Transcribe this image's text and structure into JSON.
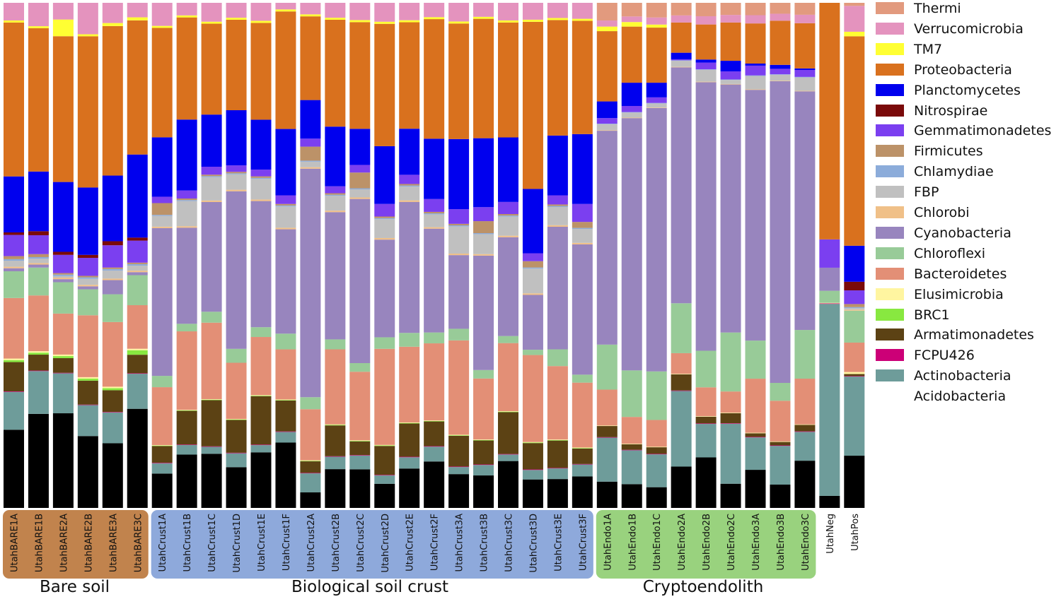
{
  "chart_data": {
    "type": "stacked-bar",
    "orientation": "vertical",
    "ylim": [
      0,
      100
    ],
    "value_unit": "relative abundance (%)",
    "stack_order_bottom_to_top": [
      "Acidobacteria",
      "Actinobacteria",
      "FCPU426",
      "Armatimonadetes",
      "BRC1",
      "Elusimicrobia",
      "Bacteroidetes",
      "Chloroflexi",
      "Cyanobacteria",
      "Chlorobi",
      "FBP",
      "Chlamydiae",
      "Firmicutes",
      "Gemmatimonadetes",
      "Nitrospirae",
      "Planctomycetes",
      "Proteobacteria",
      "TM7",
      "Verrucomicrobia",
      "Thermi"
    ],
    "colors": {
      "Thermi": "#E29A7E",
      "Verrucomicrobia": "#E493BE",
      "TM7": "#FFFF33",
      "Proteobacteria": "#D9711E",
      "Planctomycetes": "#0000EE",
      "Nitrospirae": "#7A0A0A",
      "Gemmatimonadetes": "#7B3FF0",
      "Firmicutes": "#BC9268",
      "Chlamydiae": "#8CACDA",
      "FBP": "#C0C0C0",
      "Chlorobi": "#F0C088",
      "Cyanobacteria": "#9885BE",
      "Chloroflexi": "#98CB98",
      "Bacteroidetes": "#E38F76",
      "Elusimicrobia": "#FFF5A0",
      "BRC1": "#88E840",
      "Armatimonadetes": "#5C4214",
      "FCPU426": "#CC0077",
      "Actinobacteria": "#6E9C9A"
    },
    "categories": [
      "UtahBARE1A",
      "UtahBARE1B",
      "UtahBARE2A",
      "UtahBARE2B",
      "UtahBARE3A",
      "UtahBARE3C",
      "UtahCrust1A",
      "UtahCrust1B",
      "UtahCrust1C",
      "UtahCrust1D",
      "UtahCrust1E",
      "UtahCrust1F",
      "UtahCrust2A",
      "UtahCrust2B",
      "UtahCrust2C",
      "UtahCrust2D",
      "UtahCrust2E",
      "UtahCrust2F",
      "UtahCrust3A",
      "UtahCrust3B",
      "UtahCrust3C",
      "UtahCrust3D",
      "UtahCrust3E",
      "UtahCrust3F",
      "UtahEndo1A",
      "UtahEndo1B",
      "UtahEndo1C",
      "UtahEndo2A",
      "UtahEndo2B",
      "UtahEndo2C",
      "UtahEndo3A",
      "UtahEndo3B",
      "UtahEndo3C",
      "UtahNeg",
      "UtahPos"
    ],
    "series": [
      {
        "name": "Acidobacteria",
        "values": [
          15.5,
          18.9,
          18.7,
          14.4,
          12.8,
          19.8,
          7.0,
          10.6,
          10.9,
          8.2,
          10.8,
          12.9,
          3.1,
          7.8,
          7.6,
          4.6,
          7.7,
          9.4,
          6.7,
          6.5,
          9.3,
          5.4,
          5.7,
          6.3,
          5.2,
          4.7,
          4.1,
          8.2,
          9.8,
          4.8,
          7.4,
          4.7,
          9.5,
          2.3,
          10.3
        ]
      },
      {
        "name": "Actinobacteria",
        "values": [
          7.5,
          8.6,
          7.9,
          6.2,
          6.1,
          7.0,
          2.1,
          1.9,
          1.4,
          2.8,
          1.4,
          2.1,
          3.8,
          2.5,
          2.7,
          1.6,
          2.2,
          3.0,
          1.4,
          2.1,
          1.3,
          1.8,
          2.1,
          2.4,
          8.7,
          6.7,
          6.5,
          15.0,
          6.5,
          11.9,
          6.3,
          7.8,
          5.8,
          36.6,
          15.6
        ]
      },
      {
        "name": "FCPU426",
        "values": [
          0.1,
          0.1,
          0.1,
          0.1,
          0.1,
          0.1,
          0.1,
          0.1,
          0.1,
          0.1,
          0.1,
          0.1,
          0.1,
          0.1,
          0.1,
          0.1,
          0.1,
          0.1,
          0.1,
          0.1,
          0.1,
          0.1,
          0.1,
          0.1,
          0.1,
          0.1,
          0.1,
          0.1,
          0.1,
          0.1,
          0.1,
          0.1,
          0.1,
          0.1,
          0.1
        ]
      },
      {
        "name": "Armatimonadetes",
        "values": [
          5.8,
          3.2,
          2.9,
          4.8,
          4.3,
          3.7,
          3.4,
          6.7,
          9.3,
          6.6,
          9.4,
          6.1,
          2.3,
          6.2,
          2.7,
          5.5,
          6.5,
          5.0,
          6.1,
          4.8,
          8.3,
          5.0,
          5.4,
          3.1,
          2.2,
          1.1,
          1.3,
          3.2,
          1.3,
          2.0,
          0.7,
          0.7,
          1.3,
          0,
          0.4
        ]
      },
      {
        "name": "BRC1",
        "values": [
          0.4,
          0.4,
          0.4,
          0.4,
          0.4,
          0.9,
          0.1,
          0.1,
          0.1,
          0.1,
          0.1,
          0.1,
          0.1,
          0.1,
          0.1,
          0.1,
          0.1,
          0.1,
          0.1,
          0.1,
          0.1,
          0.1,
          0.1,
          0.1,
          0,
          0,
          0,
          0,
          0,
          0,
          0,
          0,
          0,
          0,
          0
        ]
      },
      {
        "name": "Elusimicrobia",
        "values": [
          0.3,
          0.3,
          0.3,
          0.3,
          0.3,
          0.3,
          0.1,
          0.1,
          0.1,
          0.1,
          0.1,
          0.1,
          0.1,
          0.1,
          0.1,
          0.1,
          0.1,
          0.1,
          0.1,
          0.1,
          0.1,
          0.1,
          0.1,
          0.1,
          0.1,
          0.1,
          0.1,
          0.1,
          0.1,
          0.1,
          0.1,
          0.1,
          0.1,
          0.1,
          0.4
        ]
      },
      {
        "name": "Bacteroidetes",
        "values": [
          12.0,
          11.2,
          8.1,
          12.4,
          12.8,
          8.7,
          11.8,
          15.6,
          15.4,
          11.3,
          11.3,
          9.9,
          10.2,
          15.1,
          13.5,
          18.3,
          14.8,
          15.6,
          18.7,
          12.2,
          13.5,
          16.5,
          14.5,
          13.0,
          7.1,
          5.3,
          5.3,
          4.1,
          5.6,
          4.2,
          10.5,
          8.2,
          9.2,
          0,
          5.8
        ]
      },
      {
        "name": "Chloroflexi",
        "values": [
          5.3,
          5.6,
          6.2,
          5.2,
          5.5,
          6.0,
          2.3,
          1.5,
          2.2,
          2.8,
          1.9,
          3.1,
          2.4,
          2.0,
          1.7,
          2.2,
          2.7,
          2.2,
          2.3,
          1.7,
          1.4,
          1.0,
          3.3,
          1.6,
          8.9,
          9.2,
          9.6,
          9.9,
          7.1,
          11.7,
          7.4,
          3.6,
          9.8,
          2.3,
          6.3
        ]
      },
      {
        "name": "Cyanobacteria",
        "values": [
          0.6,
          0.6,
          0.6,
          0.6,
          2.8,
          0.6,
          30.1,
          19.1,
          22.1,
          31.7,
          24.5,
          20.6,
          45.6,
          25.6,
          32.3,
          18.6,
          25.6,
          21.0,
          14.6,
          22.9,
          19.6,
          10.4,
          24.2,
          26.1,
          42.3,
          49.9,
          52.1,
          46.8,
          52.1,
          49.2,
          48.7,
          60.8,
          48.0,
          4.4,
          0
        ]
      },
      {
        "name": "Chlorobi",
        "values": [
          0.3,
          0.3,
          0.3,
          0.3,
          0.3,
          0.3,
          0.3,
          0.3,
          0.3,
          0.3,
          0.3,
          0.3,
          0.3,
          0.3,
          0.3,
          0.3,
          0.3,
          0.3,
          0.3,
          0.3,
          0.3,
          0.3,
          0.3,
          0.3,
          0.1,
          0.1,
          0.1,
          0.1,
          0.1,
          0.1,
          0.1,
          0.1,
          0.1,
          0,
          0.2
        ]
      },
      {
        "name": "FBP",
        "values": [
          1.2,
          0.9,
          0.3,
          1.2,
          1.6,
          1.0,
          2.2,
          5.0,
          4.7,
          3.1,
          4.0,
          4.2,
          1.1,
          3.0,
          1.6,
          3.6,
          2.7,
          2.6,
          5.4,
          4.0,
          3.8,
          4.7,
          3.6,
          2.8,
          1.2,
          1.0,
          0.8,
          1.2,
          2.3,
          0.8,
          2.6,
          1.2,
          2.7,
          0,
          0.3
        ]
      },
      {
        "name": "Chlamydiae",
        "values": [
          0.3,
          0.3,
          0.3,
          0.3,
          0.3,
          0.3,
          0.2,
          0.2,
          0.2,
          0.2,
          0.2,
          0.2,
          0.2,
          0.2,
          0.2,
          0.2,
          0.2,
          0.2,
          0.2,
          0.2,
          0.2,
          0.2,
          0.2,
          0.2,
          0.1,
          0.1,
          0.1,
          0.1,
          0.1,
          0.1,
          0.1,
          0.1,
          0.1,
          0,
          0.2
        ]
      },
      {
        "name": "Firmicutes",
        "values": [
          0.6,
          0.6,
          0.3,
          0.3,
          0.3,
          0.3,
          2.4,
          0.3,
          0.3,
          0.3,
          0.3,
          0.3,
          2.8,
          0.3,
          3.1,
          0.3,
          0.3,
          0.3,
          0.3,
          2.4,
          0.3,
          1.2,
          0.3,
          1.2,
          0,
          0,
          0,
          0,
          0,
          0,
          0,
          0,
          0,
          0,
          0.6
        ]
      },
      {
        "name": "Gemmatimonadetes",
        "values": [
          4.2,
          3.8,
          3.6,
          3.6,
          4.4,
          4.4,
          1.3,
          1.6,
          1.6,
          1.3,
          1.3,
          1.7,
          1.6,
          1.4,
          1.5,
          2.4,
          1.8,
          2.6,
          2.9,
          2.8,
          2.4,
          1.5,
          1.8,
          3.6,
          1.1,
          1.2,
          1.1,
          0.2,
          1.3,
          1.6,
          1.9,
          1.1,
          1.4,
          5.4,
          2.7
        ]
      },
      {
        "name": "Nitrospirae",
        "values": [
          0.5,
          0.8,
          0.6,
          0.6,
          0.8,
          0.6,
          0,
          0,
          0,
          0,
          0,
          0,
          0,
          0,
          0,
          0,
          0,
          0,
          0,
          0,
          0,
          0,
          0,
          0,
          0,
          0,
          0,
          0,
          0,
          0,
          0,
          0,
          0,
          0,
          1.7
        ]
      },
      {
        "name": "Planctomycetes",
        "values": [
          11.1,
          12.0,
          13.8,
          13.5,
          13.0,
          16.6,
          12.1,
          14.1,
          10.5,
          11.1,
          9.7,
          13.1,
          7.7,
          12.0,
          7.1,
          11.0,
          9.0,
          12.2,
          13.9,
          13.8,
          12.8,
          12.2,
          11.8,
          14.0,
          3.3,
          4.6,
          2.9,
          1.3,
          0.6,
          2.1,
          0.4,
          0.8,
          0.3,
          0,
          7.1
        ]
      },
      {
        "name": "Proteobacteria",
        "values": [
          30.5,
          28.8,
          28.8,
          30.3,
          29.6,
          26.8,
          22.3,
          20.3,
          18.3,
          18.2,
          18.8,
          23.2,
          16.7,
          21.5,
          21.0,
          23.3,
          20.8,
          24.2,
          22.9,
          23.9,
          22.8,
          31.7,
          22.8,
          22.7,
          13.9,
          11.1,
          10.9,
          6.0,
          6.8,
          7.6,
          7.8,
          8.9,
          9.1,
          45.1,
          41.3
        ]
      },
      {
        "name": "TM7",
        "values": [
          0.4,
          0.4,
          3.3,
          0.4,
          0.6,
          0.6,
          0.4,
          0.4,
          0.4,
          0.4,
          0.4,
          0.4,
          0.4,
          0.4,
          0.4,
          0.4,
          0.4,
          0.4,
          0.4,
          0.4,
          0.4,
          0.4,
          0.4,
          0.4,
          0.9,
          0.9,
          0.6,
          0,
          0,
          0,
          0,
          0,
          0,
          0,
          0.9
        ]
      },
      {
        "name": "Verrucomicrobia",
        "values": [
          3.5,
          4.7,
          3.3,
          6.3,
          4.0,
          2.9,
          4.7,
          2.5,
          3.8,
          3.0,
          3.5,
          1.3,
          2.3,
          3.0,
          3.4,
          3.6,
          3.4,
          2.9,
          3.7,
          2.8,
          3.5,
          3.2,
          3.0,
          3.2,
          1.2,
          1.1,
          1.4,
          1.4,
          1.6,
          1.5,
          1.6,
          1.4,
          1.7,
          0,
          5.1
        ]
      },
      {
        "name": "Thermi",
        "values": [
          0,
          0,
          0,
          0,
          0,
          0,
          0,
          0,
          0,
          0,
          0,
          0,
          0,
          0,
          0,
          0,
          0,
          0,
          0,
          0,
          0,
          0,
          0,
          0,
          3.5,
          2.7,
          2.9,
          2.5,
          2.6,
          2.4,
          2.4,
          2.2,
          2.4,
          0,
          0.6
        ]
      }
    ],
    "groups": [
      {
        "label": "Bare soil",
        "first": 0,
        "last": 5,
        "color": "#C1834D"
      },
      {
        "label": "Biological soil crust",
        "first": 6,
        "last": 23,
        "color": "#8EA9DB"
      },
      {
        "label": "Cryptoendolith",
        "first": 24,
        "last": 32,
        "color": "#99D27E"
      }
    ],
    "legend": [
      "Thermi",
      "Verrucomicrobia",
      "TM7",
      "Proteobacteria",
      "Planctomycetes",
      "Nitrospirae",
      "Gemmatimonadetes",
      "Firmicutes",
      "Chlamydiae",
      "FBP",
      "Chlorobi",
      "Cyanobacteria",
      "Chloroflexi",
      "Bacteroidetes",
      "Elusimicrobia",
      "BRC1",
      "Armatimonadetes",
      "FCPU426",
      "Actinobacteria",
      "Acidobacteria"
    ],
    "legend_position": "right"
  }
}
